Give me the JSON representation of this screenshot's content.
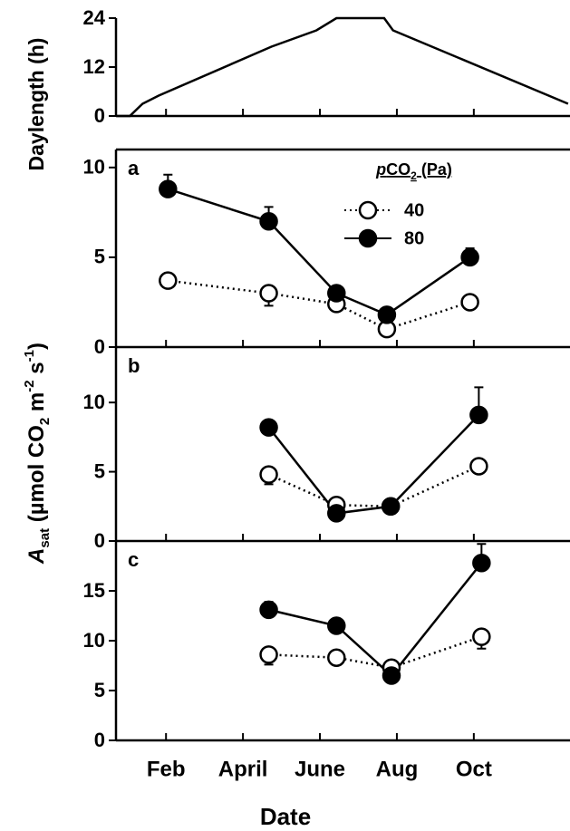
{
  "chart_data": [
    {
      "type": "line",
      "y_label": "Daylength (h)",
      "color": "#000000",
      "x": [
        0.71,
        1.06,
        1.39,
        1.81,
        4.74,
        5.91,
        6.43,
        7.67,
        7.9,
        12.45
      ],
      "values": [
        0,
        0,
        3,
        5,
        17,
        21,
        24,
        24,
        21,
        3
      ],
      "xlim": [
        0.7,
        12.5
      ],
      "ylim": [
        0,
        24
      ],
      "yticks": [
        0,
        12,
        24
      ]
    },
    {
      "type": "line_error",
      "panel_label": "a",
      "legend_title_parts": [
        "p",
        "CO",
        "2",
        " (Pa)"
      ],
      "x": [
        2.05,
        4.67,
        6.43,
        7.74,
        9.9
      ],
      "series": [
        {
          "name": "40",
          "color": "#ffffff",
          "marker": "open",
          "linestyle": "dotted",
          "error_side": "down",
          "values": [
            3.7,
            3.0,
            2.4,
            1.0,
            2.5
          ],
          "errors": [
            0.2,
            0.7,
            0.2,
            0.2,
            0.2
          ]
        },
        {
          "name": "80",
          "color": "#000000",
          "marker": "filled",
          "linestyle": "solid",
          "error_side": "up",
          "values": [
            8.8,
            7.0,
            3.0,
            1.8,
            5.0
          ],
          "errors": [
            0.8,
            0.8,
            0.2,
            0.2,
            0.5
          ]
        }
      ],
      "xlim": [
        0.7,
        12.5
      ],
      "ylim": [
        0,
        11
      ],
      "yticks": [
        0,
        5,
        10
      ]
    },
    {
      "type": "line_error",
      "panel_label": "b",
      "y_label_parts": [
        "A",
        "sat",
        "  (µmol CO",
        "2",
        " m",
        "-2",
        " s",
        "-1",
        ")"
      ],
      "x": [
        4.67,
        6.43,
        7.84,
        10.13
      ],
      "series": [
        {
          "name": "40",
          "color": "#ffffff",
          "marker": "open",
          "linestyle": "dotted",
          "error_side": "down",
          "values": [
            4.8,
            2.6,
            2.5,
            5.4
          ],
          "errors": [
            0.7,
            0.3,
            0.3,
            0.3
          ]
        },
        {
          "name": "80",
          "color": "#000000",
          "marker": "filled",
          "linestyle": "solid",
          "error_side": "up",
          "values": [
            8.2,
            2.0,
            2.5,
            9.1
          ],
          "errors": [
            0.3,
            0.3,
            0.3,
            2.0
          ]
        }
      ],
      "xlim": [
        0.7,
        12.5
      ],
      "ylim": [
        0,
        14
      ],
      "yticks": [
        0,
        5,
        10
      ]
    },
    {
      "type": "line_error",
      "panel_label": "c",
      "x_label": "Date",
      "x": [
        4.67,
        6.43,
        7.86,
        10.2
      ],
      "series": [
        {
          "name": "40",
          "color": "#ffffff",
          "marker": "open",
          "linestyle": "dotted",
          "error_side": "down",
          "values": [
            8.6,
            8.3,
            7.3,
            10.4
          ],
          "errors": [
            1.0,
            0.3,
            0.3,
            1.2
          ]
        },
        {
          "name": "80",
          "color": "#000000",
          "marker": "filled",
          "linestyle": "solid",
          "error_side": "up",
          "values": [
            13.1,
            11.5,
            6.5,
            17.8
          ],
          "errors": [
            0.8,
            0.5,
            0.4,
            1.9
          ]
        }
      ],
      "xlim": [
        0.7,
        12.5
      ],
      "ylim": [
        0,
        20
      ],
      "yticks": [
        0,
        5,
        10,
        15
      ],
      "xticks": [
        {
          "value": 2,
          "label": "Feb"
        },
        {
          "value": 4,
          "label": "April"
        },
        {
          "value": 6,
          "label": "June"
        },
        {
          "value": 8,
          "label": "Aug"
        },
        {
          "value": 10,
          "label": "Oct"
        }
      ]
    }
  ]
}
